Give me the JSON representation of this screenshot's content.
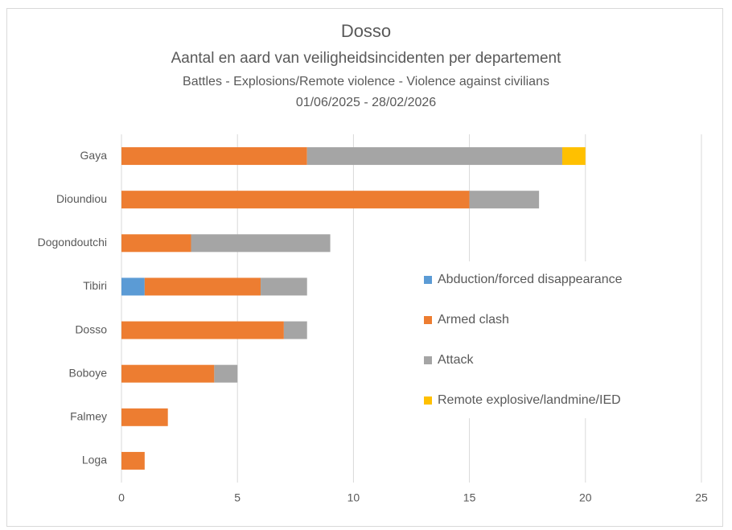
{
  "chart_data": {
    "type": "stacked-barh",
    "title": "Dosso",
    "subtitles": [
      "Aantal en aard van veiligheidsincidenten per departement",
      "Battles - Explosions/Remote violence - Violence against civilians",
      "01/06/2025 - 28/02/2026"
    ],
    "categories": [
      "Gaya",
      "Dioundiou",
      "Dogondoutchi",
      "Tibiri",
      "Dosso",
      "Boboye",
      "Falmey",
      "Loga"
    ],
    "series": [
      {
        "name": "Abduction/forced disappearance",
        "color": "#5b9bd5",
        "values": [
          0,
          0,
          0,
          1,
          0,
          0,
          0,
          0
        ]
      },
      {
        "name": "Armed clash",
        "color": "#ed7d31",
        "values": [
          8,
          15,
          3,
          5,
          7,
          4,
          2,
          1
        ]
      },
      {
        "name": "Attack",
        "color": "#a5a5a5",
        "values": [
          11,
          3,
          6,
          2,
          1,
          1,
          0,
          0
        ]
      },
      {
        "name": "Remote explosive/landmine/IED",
        "color": "#ffc000",
        "values": [
          1,
          0,
          0,
          0,
          0,
          0,
          0,
          0
        ]
      }
    ],
    "xlim": [
      0,
      25
    ],
    "xticks": [
      0,
      5,
      10,
      15,
      20,
      25
    ],
    "grid": true,
    "legend": "right"
  }
}
